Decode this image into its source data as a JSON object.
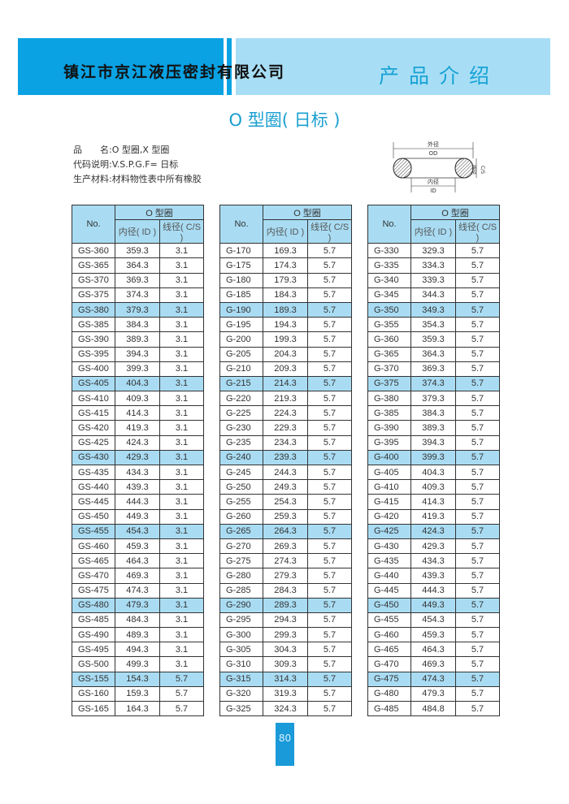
{
  "header": {
    "company": "镇江市京江液压密封有限公司",
    "section": "产品介绍"
  },
  "title": "O 型圈( 日标 )",
  "info": [
    "品　　名:O 型圈,X 型圈",
    "代码说明:V.S.P.G.F= 日标",
    "生产材料:材料物性表中所有橡胶"
  ],
  "diagram": {
    "od_cn": "外径",
    "od": "OD",
    "id_cn": "内径",
    "id": "ID",
    "cs_cn": "线径",
    "cs": "C/S"
  },
  "table_headers": {
    "no": "No.",
    "group": "O 型圈",
    "id": "内径( ID )",
    "cs": "线径( C/S )"
  },
  "tables": [
    [
      [
        "GS-360",
        "359.3",
        "3.1"
      ],
      [
        "GS-365",
        "364.3",
        "3.1"
      ],
      [
        "GS-370",
        "369.3",
        "3.1"
      ],
      [
        "GS-375",
        "374.3",
        "3.1"
      ],
      [
        "GS-380",
        "379.3",
        "3.1"
      ],
      [
        "GS-385",
        "384.3",
        "3.1"
      ],
      [
        "GS-390",
        "389.3",
        "3.1"
      ],
      [
        "GS-395",
        "394.3",
        "3.1"
      ],
      [
        "GS-400",
        "399.3",
        "3.1"
      ],
      [
        "GS-405",
        "404.3",
        "3.1"
      ],
      [
        "GS-410",
        "409.3",
        "3.1"
      ],
      [
        "GS-415",
        "414.3",
        "3.1"
      ],
      [
        "GS-420",
        "419.3",
        "3.1"
      ],
      [
        "GS-425",
        "424.3",
        "3.1"
      ],
      [
        "GS-430",
        "429.3",
        "3.1"
      ],
      [
        "GS-435",
        "434.3",
        "3.1"
      ],
      [
        "GS-440",
        "439.3",
        "3.1"
      ],
      [
        "GS-445",
        "444.3",
        "3.1"
      ],
      [
        "GS-450",
        "449.3",
        "3.1"
      ],
      [
        "GS-455",
        "454.3",
        "3.1"
      ],
      [
        "GS-460",
        "459.3",
        "3.1"
      ],
      [
        "GS-465",
        "464.3",
        "3.1"
      ],
      [
        "GS-470",
        "469.3",
        "3.1"
      ],
      [
        "GS-475",
        "474.3",
        "3.1"
      ],
      [
        "GS-480",
        "479.3",
        "3.1"
      ],
      [
        "GS-485",
        "484.3",
        "3.1"
      ],
      [
        "GS-490",
        "489.3",
        "3.1"
      ],
      [
        "GS-495",
        "494.3",
        "3.1"
      ],
      [
        "GS-500",
        "499.3",
        "3.1"
      ],
      [
        "GS-155",
        "154.3",
        "5.7"
      ],
      [
        "GS-160",
        "159.3",
        "5.7"
      ],
      [
        "GS-165",
        "164.3",
        "5.7"
      ]
    ],
    [
      [
        "G-170",
        "169.3",
        "5.7"
      ],
      [
        "G-175",
        "174.3",
        "5.7"
      ],
      [
        "G-180",
        "179.3",
        "5.7"
      ],
      [
        "G-185",
        "184.3",
        "5.7"
      ],
      [
        "G-190",
        "189.3",
        "5.7"
      ],
      [
        "G-195",
        "194.3",
        "5.7"
      ],
      [
        "G-200",
        "199.3",
        "5.7"
      ],
      [
        "G-205",
        "204.3",
        "5.7"
      ],
      [
        "G-210",
        "209.3",
        "5.7"
      ],
      [
        "G-215",
        "214.3",
        "5.7"
      ],
      [
        "G-220",
        "219.3",
        "5.7"
      ],
      [
        "G-225",
        "224.3",
        "5.7"
      ],
      [
        "G-230",
        "229.3",
        "5.7"
      ],
      [
        "G-235",
        "234.3",
        "5.7"
      ],
      [
        "G-240",
        "239.3",
        "5.7"
      ],
      [
        "G-245",
        "244.3",
        "5.7"
      ],
      [
        "G-250",
        "249.3",
        "5.7"
      ],
      [
        "G-255",
        "254.3",
        "5.7"
      ],
      [
        "G-260",
        "259.3",
        "5.7"
      ],
      [
        "G-265",
        "264.3",
        "5.7"
      ],
      [
        "G-270",
        "269.3",
        "5.7"
      ],
      [
        "G-275",
        "274.3",
        "5.7"
      ],
      [
        "G-280",
        "279.3",
        "5.7"
      ],
      [
        "G-285",
        "284.3",
        "5.7"
      ],
      [
        "G-290",
        "289.3",
        "5.7"
      ],
      [
        "G-295",
        "294.3",
        "5.7"
      ],
      [
        "G-300",
        "299.3",
        "5.7"
      ],
      [
        "G-305",
        "304.3",
        "5.7"
      ],
      [
        "G-310",
        "309.3",
        "5.7"
      ],
      [
        "G-315",
        "314.3",
        "5.7"
      ],
      [
        "G-320",
        "319.3",
        "5.7"
      ],
      [
        "G-325",
        "324.3",
        "5.7"
      ]
    ],
    [
      [
        "G-330",
        "329.3",
        "5.7"
      ],
      [
        "G-335",
        "334.3",
        "5.7"
      ],
      [
        "G-340",
        "339.3",
        "5.7"
      ],
      [
        "G-345",
        "344.3",
        "5.7"
      ],
      [
        "G-350",
        "349.3",
        "5.7"
      ],
      [
        "G-355",
        "354.3",
        "5.7"
      ],
      [
        "G-360",
        "359.3",
        "5.7"
      ],
      [
        "G-365",
        "364.3",
        "5.7"
      ],
      [
        "G-370",
        "369.3",
        "5.7"
      ],
      [
        "G-375",
        "374.3",
        "5.7"
      ],
      [
        "G-380",
        "379.3",
        "5.7"
      ],
      [
        "G-385",
        "384.3",
        "5.7"
      ],
      [
        "G-390",
        "389.3",
        "5.7"
      ],
      [
        "G-395",
        "394.3",
        "5.7"
      ],
      [
        "G-400",
        "399.3",
        "5.7"
      ],
      [
        "G-405",
        "404.3",
        "5.7"
      ],
      [
        "G-410",
        "409.3",
        "5.7"
      ],
      [
        "G-415",
        "414.3",
        "5.7"
      ],
      [
        "G-420",
        "419.3",
        "5.7"
      ],
      [
        "G-425",
        "424.3",
        "5.7"
      ],
      [
        "G-430",
        "429.3",
        "5.7"
      ],
      [
        "G-435",
        "434.3",
        "5.7"
      ],
      [
        "G-440",
        "439.3",
        "5.7"
      ],
      [
        "G-445",
        "444.3",
        "5.7"
      ],
      [
        "G-450",
        "449.3",
        "5.7"
      ],
      [
        "G-455",
        "454.3",
        "5.7"
      ],
      [
        "G-460",
        "459.3",
        "5.7"
      ],
      [
        "G-465",
        "464.3",
        "5.7"
      ],
      [
        "G-470",
        "469.3",
        "5.7"
      ],
      [
        "G-475",
        "474.3",
        "5.7"
      ],
      [
        "G-480",
        "479.3",
        "5.7"
      ],
      [
        "G-485",
        "484.8",
        "5.7"
      ]
    ]
  ],
  "page_number": "80",
  "colors": {
    "brand_blue": "#0aa2e3",
    "light_blue": "#a8def5",
    "row_highlight": "#a9dcf3"
  }
}
